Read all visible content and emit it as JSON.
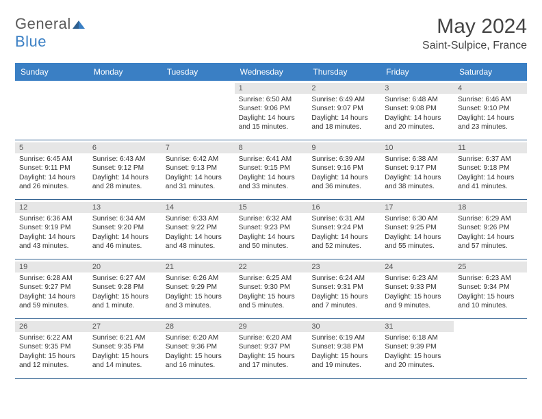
{
  "logo": {
    "word1": "General",
    "word2": "Blue"
  },
  "title": "May 2024",
  "location": "Saint-Sulpice, France",
  "colors": {
    "header_bg": "#3a7fc4",
    "header_text": "#ffffff",
    "date_row_bg": "#e6e6e6",
    "week_divider": "#2e5f8f",
    "logo_gray": "#5a5a5a",
    "logo_blue": "#3a7fc4"
  },
  "day_names": [
    "Sunday",
    "Monday",
    "Tuesday",
    "Wednesday",
    "Thursday",
    "Friday",
    "Saturday"
  ],
  "weeks": [
    [
      {
        "empty": true
      },
      {
        "empty": true
      },
      {
        "empty": true
      },
      {
        "date": "1",
        "sunrise": "Sunrise: 6:50 AM",
        "sunset": "Sunset: 9:06 PM",
        "daylight": "Daylight: 14 hours and 15 minutes."
      },
      {
        "date": "2",
        "sunrise": "Sunrise: 6:49 AM",
        "sunset": "Sunset: 9:07 PM",
        "daylight": "Daylight: 14 hours and 18 minutes."
      },
      {
        "date": "3",
        "sunrise": "Sunrise: 6:48 AM",
        "sunset": "Sunset: 9:08 PM",
        "daylight": "Daylight: 14 hours and 20 minutes."
      },
      {
        "date": "4",
        "sunrise": "Sunrise: 6:46 AM",
        "sunset": "Sunset: 9:10 PM",
        "daylight": "Daylight: 14 hours and 23 minutes."
      }
    ],
    [
      {
        "date": "5",
        "sunrise": "Sunrise: 6:45 AM",
        "sunset": "Sunset: 9:11 PM",
        "daylight": "Daylight: 14 hours and 26 minutes."
      },
      {
        "date": "6",
        "sunrise": "Sunrise: 6:43 AM",
        "sunset": "Sunset: 9:12 PM",
        "daylight": "Daylight: 14 hours and 28 minutes."
      },
      {
        "date": "7",
        "sunrise": "Sunrise: 6:42 AM",
        "sunset": "Sunset: 9:13 PM",
        "daylight": "Daylight: 14 hours and 31 minutes."
      },
      {
        "date": "8",
        "sunrise": "Sunrise: 6:41 AM",
        "sunset": "Sunset: 9:15 PM",
        "daylight": "Daylight: 14 hours and 33 minutes."
      },
      {
        "date": "9",
        "sunrise": "Sunrise: 6:39 AM",
        "sunset": "Sunset: 9:16 PM",
        "daylight": "Daylight: 14 hours and 36 minutes."
      },
      {
        "date": "10",
        "sunrise": "Sunrise: 6:38 AM",
        "sunset": "Sunset: 9:17 PM",
        "daylight": "Daylight: 14 hours and 38 minutes."
      },
      {
        "date": "11",
        "sunrise": "Sunrise: 6:37 AM",
        "sunset": "Sunset: 9:18 PM",
        "daylight": "Daylight: 14 hours and 41 minutes."
      }
    ],
    [
      {
        "date": "12",
        "sunrise": "Sunrise: 6:36 AM",
        "sunset": "Sunset: 9:19 PM",
        "daylight": "Daylight: 14 hours and 43 minutes."
      },
      {
        "date": "13",
        "sunrise": "Sunrise: 6:34 AM",
        "sunset": "Sunset: 9:20 PM",
        "daylight": "Daylight: 14 hours and 46 minutes."
      },
      {
        "date": "14",
        "sunrise": "Sunrise: 6:33 AM",
        "sunset": "Sunset: 9:22 PM",
        "daylight": "Daylight: 14 hours and 48 minutes."
      },
      {
        "date": "15",
        "sunrise": "Sunrise: 6:32 AM",
        "sunset": "Sunset: 9:23 PM",
        "daylight": "Daylight: 14 hours and 50 minutes."
      },
      {
        "date": "16",
        "sunrise": "Sunrise: 6:31 AM",
        "sunset": "Sunset: 9:24 PM",
        "daylight": "Daylight: 14 hours and 52 minutes."
      },
      {
        "date": "17",
        "sunrise": "Sunrise: 6:30 AM",
        "sunset": "Sunset: 9:25 PM",
        "daylight": "Daylight: 14 hours and 55 minutes."
      },
      {
        "date": "18",
        "sunrise": "Sunrise: 6:29 AM",
        "sunset": "Sunset: 9:26 PM",
        "daylight": "Daylight: 14 hours and 57 minutes."
      }
    ],
    [
      {
        "date": "19",
        "sunrise": "Sunrise: 6:28 AM",
        "sunset": "Sunset: 9:27 PM",
        "daylight": "Daylight: 14 hours and 59 minutes."
      },
      {
        "date": "20",
        "sunrise": "Sunrise: 6:27 AM",
        "sunset": "Sunset: 9:28 PM",
        "daylight": "Daylight: 15 hours and 1 minute."
      },
      {
        "date": "21",
        "sunrise": "Sunrise: 6:26 AM",
        "sunset": "Sunset: 9:29 PM",
        "daylight": "Daylight: 15 hours and 3 minutes."
      },
      {
        "date": "22",
        "sunrise": "Sunrise: 6:25 AM",
        "sunset": "Sunset: 9:30 PM",
        "daylight": "Daylight: 15 hours and 5 minutes."
      },
      {
        "date": "23",
        "sunrise": "Sunrise: 6:24 AM",
        "sunset": "Sunset: 9:31 PM",
        "daylight": "Daylight: 15 hours and 7 minutes."
      },
      {
        "date": "24",
        "sunrise": "Sunrise: 6:23 AM",
        "sunset": "Sunset: 9:33 PM",
        "daylight": "Daylight: 15 hours and 9 minutes."
      },
      {
        "date": "25",
        "sunrise": "Sunrise: 6:23 AM",
        "sunset": "Sunset: 9:34 PM",
        "daylight": "Daylight: 15 hours and 10 minutes."
      }
    ],
    [
      {
        "date": "26",
        "sunrise": "Sunrise: 6:22 AM",
        "sunset": "Sunset: 9:35 PM",
        "daylight": "Daylight: 15 hours and 12 minutes."
      },
      {
        "date": "27",
        "sunrise": "Sunrise: 6:21 AM",
        "sunset": "Sunset: 9:35 PM",
        "daylight": "Daylight: 15 hours and 14 minutes."
      },
      {
        "date": "28",
        "sunrise": "Sunrise: 6:20 AM",
        "sunset": "Sunset: 9:36 PM",
        "daylight": "Daylight: 15 hours and 16 minutes."
      },
      {
        "date": "29",
        "sunrise": "Sunrise: 6:20 AM",
        "sunset": "Sunset: 9:37 PM",
        "daylight": "Daylight: 15 hours and 17 minutes."
      },
      {
        "date": "30",
        "sunrise": "Sunrise: 6:19 AM",
        "sunset": "Sunset: 9:38 PM",
        "daylight": "Daylight: 15 hours and 19 minutes."
      },
      {
        "date": "31",
        "sunrise": "Sunrise: 6:18 AM",
        "sunset": "Sunset: 9:39 PM",
        "daylight": "Daylight: 15 hours and 20 minutes."
      },
      {
        "empty": true
      }
    ]
  ]
}
